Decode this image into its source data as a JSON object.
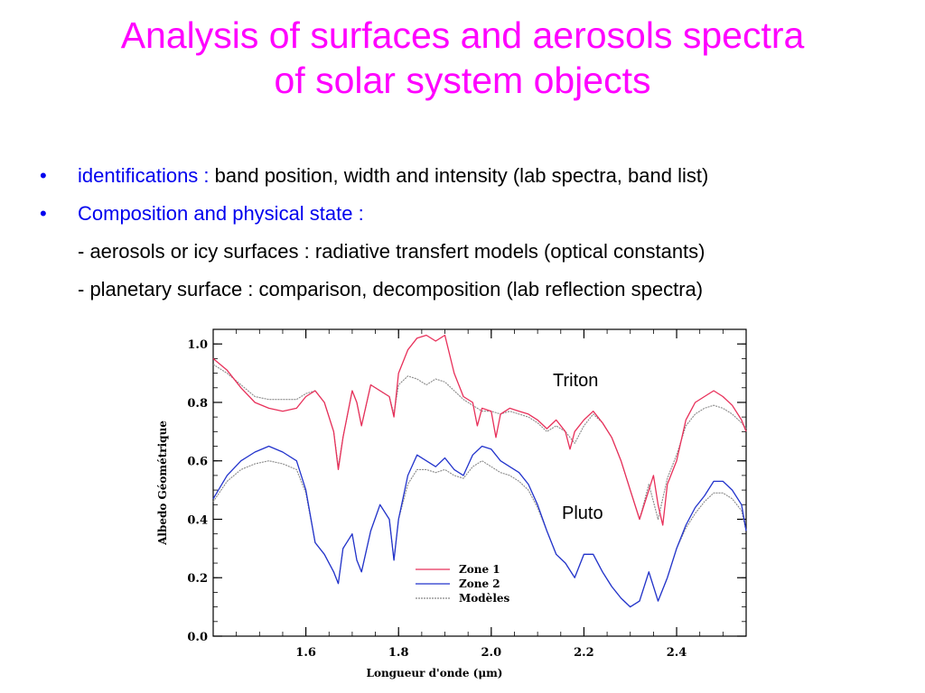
{
  "title_lines": [
    "Analysis of surfaces and aerosols spectra",
    "of solar system objects"
  ],
  "bullets": [
    {
      "highlight": "identifications :",
      "rest": " band position, width and intensity (lab spectra, band list)"
    },
    {
      "highlight": "Composition and physical state :",
      "rest": ""
    }
  ],
  "sub_lines": [
    "- aerosols or icy surfaces : radiative transfert models (optical constants)",
    "- planetary surface : comparison, decomposition (lab reflection spectra)"
  ],
  "colors": {
    "title": "#ff00ff",
    "highlight": "#0000ee",
    "zone1": "#e8305a",
    "zone2": "#2233cc",
    "models": "#888888"
  },
  "chart_data": {
    "type": "line",
    "xlabel": "Longueur d'onde (μm)",
    "ylabel": "Albedo Géométrique",
    "xlim": [
      1.4,
      2.55
    ],
    "ylim": [
      0.0,
      1.05
    ],
    "xticks": [
      1.6,
      1.8,
      2.0,
      2.2,
      2.4
    ],
    "xtick_labels": [
      "1.6",
      "1.8",
      "2.0",
      "2.2",
      "2.4"
    ],
    "yticks": [
      0.0,
      0.2,
      0.4,
      0.6,
      0.8,
      1.0
    ],
    "ytick_labels": [
      "0.0",
      "0.2",
      "0.4",
      "0.6",
      "0.8",
      "1.0"
    ],
    "annotations": [
      "Triton",
      "Pluto"
    ],
    "legend": {
      "position": "bottom-center",
      "entries": [
        "Zone  1",
        "Zone  2",
        "Modèles"
      ]
    },
    "series": [
      {
        "name": "Zone  1",
        "x": [
          1.4,
          1.43,
          1.46,
          1.49,
          1.52,
          1.55,
          1.58,
          1.6,
          1.62,
          1.64,
          1.66,
          1.67,
          1.68,
          1.7,
          1.71,
          1.72,
          1.74,
          1.76,
          1.78,
          1.79,
          1.8,
          1.82,
          1.84,
          1.86,
          1.88,
          1.9,
          1.92,
          1.94,
          1.96,
          1.97,
          1.98,
          2.0,
          2.01,
          2.02,
          2.04,
          2.06,
          2.08,
          2.1,
          2.12,
          2.14,
          2.16,
          2.17,
          2.18,
          2.2,
          2.22,
          2.24,
          2.26,
          2.28,
          2.3,
          2.32,
          2.34,
          2.35,
          2.36,
          2.37,
          2.38,
          2.4,
          2.42,
          2.44,
          2.46,
          2.48,
          2.5,
          2.52,
          2.54,
          2.55
        ],
        "y": [
          0.95,
          0.91,
          0.85,
          0.8,
          0.78,
          0.77,
          0.78,
          0.82,
          0.84,
          0.8,
          0.7,
          0.57,
          0.68,
          0.84,
          0.8,
          0.72,
          0.86,
          0.84,
          0.82,
          0.75,
          0.9,
          0.98,
          1.02,
          1.03,
          1.01,
          1.03,
          0.9,
          0.82,
          0.8,
          0.72,
          0.78,
          0.77,
          0.68,
          0.76,
          0.78,
          0.77,
          0.76,
          0.74,
          0.71,
          0.74,
          0.7,
          0.64,
          0.7,
          0.74,
          0.77,
          0.73,
          0.68,
          0.6,
          0.5,
          0.4,
          0.5,
          0.55,
          0.45,
          0.38,
          0.52,
          0.6,
          0.74,
          0.8,
          0.82,
          0.84,
          0.82,
          0.79,
          0.74,
          0.7
        ]
      },
      {
        "name": "Zone  2",
        "x": [
          1.4,
          1.43,
          1.46,
          1.49,
          1.52,
          1.55,
          1.58,
          1.6,
          1.62,
          1.64,
          1.66,
          1.67,
          1.68,
          1.7,
          1.71,
          1.72,
          1.74,
          1.76,
          1.78,
          1.79,
          1.8,
          1.82,
          1.84,
          1.86,
          1.88,
          1.9,
          1.92,
          1.94,
          1.96,
          1.98,
          2.0,
          2.02,
          2.04,
          2.06,
          2.08,
          2.1,
          2.12,
          2.14,
          2.16,
          2.18,
          2.2,
          2.22,
          2.24,
          2.26,
          2.28,
          2.3,
          2.32,
          2.34,
          2.36,
          2.38,
          2.4,
          2.42,
          2.44,
          2.46,
          2.48,
          2.5,
          2.52,
          2.54,
          2.55
        ],
        "y": [
          0.47,
          0.55,
          0.6,
          0.63,
          0.65,
          0.63,
          0.6,
          0.5,
          0.32,
          0.28,
          0.22,
          0.18,
          0.3,
          0.35,
          0.26,
          0.22,
          0.36,
          0.45,
          0.4,
          0.26,
          0.4,
          0.55,
          0.62,
          0.6,
          0.58,
          0.61,
          0.57,
          0.55,
          0.62,
          0.65,
          0.64,
          0.6,
          0.58,
          0.56,
          0.52,
          0.45,
          0.36,
          0.28,
          0.25,
          0.2,
          0.28,
          0.28,
          0.22,
          0.17,
          0.13,
          0.1,
          0.12,
          0.22,
          0.12,
          0.2,
          0.3,
          0.38,
          0.44,
          0.48,
          0.53,
          0.53,
          0.5,
          0.45,
          0.36
        ]
      },
      {
        "name": "Modèles",
        "x": [
          1.4,
          1.43,
          1.46,
          1.49,
          1.52,
          1.55,
          1.58,
          1.6,
          1.62,
          1.64,
          1.66,
          1.67,
          1.68,
          1.7,
          1.71,
          1.72,
          1.74,
          1.76,
          1.78,
          1.79,
          1.8,
          1.82,
          1.84,
          1.86,
          1.88,
          1.9,
          1.92,
          1.94,
          1.96,
          1.98,
          2.0,
          2.02,
          2.04,
          2.06,
          2.08,
          2.1,
          2.12,
          2.14,
          2.16,
          2.18,
          2.2,
          2.22,
          2.24,
          2.26,
          2.28,
          2.3,
          2.32,
          2.34,
          2.36,
          2.38,
          2.4,
          2.42,
          2.44,
          2.46,
          2.48,
          2.5,
          2.52,
          2.54,
          2.55
        ],
        "y": [
          0.93,
          0.9,
          0.86,
          0.82,
          0.81,
          0.81,
          0.81,
          0.83,
          0.84,
          0.8,
          0.7,
          0.58,
          0.68,
          0.84,
          0.8,
          0.72,
          0.86,
          0.84,
          0.82,
          0.76,
          0.86,
          0.89,
          0.88,
          0.86,
          0.88,
          0.87,
          0.84,
          0.81,
          0.79,
          0.77,
          0.77,
          0.76,
          0.77,
          0.76,
          0.75,
          0.73,
          0.7,
          0.72,
          0.7,
          0.66,
          0.72,
          0.76,
          0.73,
          0.68,
          0.6,
          0.5,
          0.4,
          0.52,
          0.4,
          0.54,
          0.62,
          0.72,
          0.76,
          0.78,
          0.79,
          0.78,
          0.76,
          0.73,
          0.71
        ]
      },
      {
        "name": "Modèles",
        "x": [
          1.4,
          1.43,
          1.46,
          1.49,
          1.52,
          1.55,
          1.58,
          1.6,
          1.62,
          1.64,
          1.66,
          1.67,
          1.68,
          1.7,
          1.71,
          1.72,
          1.74,
          1.76,
          1.78,
          1.79,
          1.8,
          1.82,
          1.84,
          1.86,
          1.88,
          1.9,
          1.92,
          1.94,
          1.96,
          1.98,
          2.0,
          2.02,
          2.04,
          2.06,
          2.08,
          2.1,
          2.12,
          2.14,
          2.16,
          2.18,
          2.2,
          2.22,
          2.24,
          2.26,
          2.28,
          2.3,
          2.32,
          2.34,
          2.36,
          2.38,
          2.4,
          2.42,
          2.44,
          2.46,
          2.48,
          2.5,
          2.52,
          2.54,
          2.55
        ],
        "y": [
          0.46,
          0.53,
          0.57,
          0.59,
          0.6,
          0.59,
          0.57,
          0.49,
          0.32,
          0.28,
          0.22,
          0.18,
          0.3,
          0.35,
          0.26,
          0.22,
          0.36,
          0.45,
          0.4,
          0.26,
          0.4,
          0.52,
          0.57,
          0.57,
          0.56,
          0.57,
          0.55,
          0.54,
          0.58,
          0.6,
          0.58,
          0.56,
          0.55,
          0.53,
          0.5,
          0.44,
          0.36,
          0.28,
          0.25,
          0.2,
          0.28,
          0.28,
          0.22,
          0.17,
          0.13,
          0.1,
          0.12,
          0.22,
          0.12,
          0.2,
          0.3,
          0.37,
          0.42,
          0.46,
          0.49,
          0.49,
          0.47,
          0.43,
          0.36
        ]
      }
    ]
  }
}
